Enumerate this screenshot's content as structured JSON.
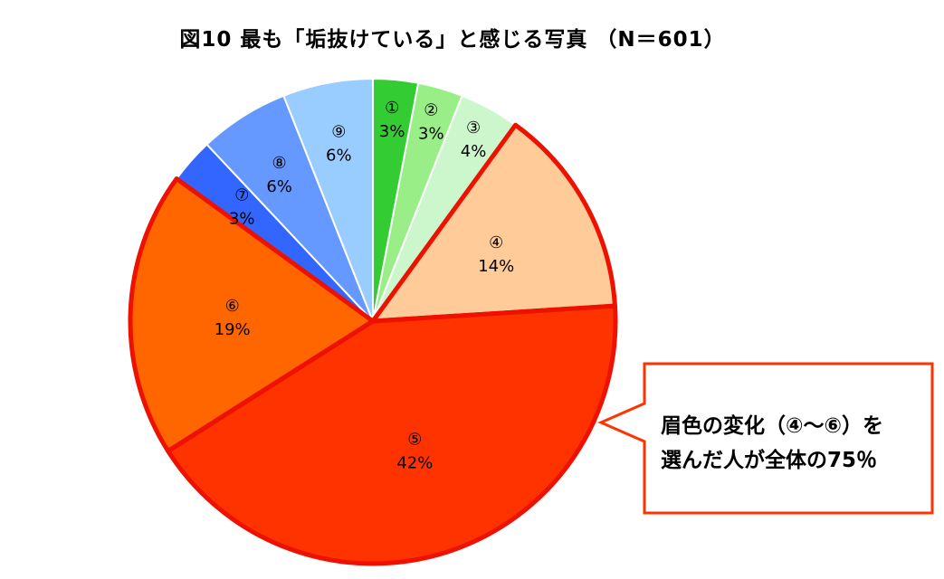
{
  "chart_data": {
    "type": "pie",
    "title": "図10 最も「垢抜けている」と感じる写真 （N＝601）",
    "slices": [
      {
        "id": "①",
        "value": 3,
        "label": "3%",
        "color": "#33cc33"
      },
      {
        "id": "②",
        "value": 3,
        "label": "3%",
        "color": "#99ee88"
      },
      {
        "id": "③",
        "value": 4,
        "label": "4%",
        "color": "#ccf7cc"
      },
      {
        "id": "④",
        "value": 14,
        "label": "14%",
        "color": "#ffcc99"
      },
      {
        "id": "⑤",
        "value": 42,
        "label": "42%",
        "color": "#ff3300"
      },
      {
        "id": "⑥",
        "value": 19,
        "label": "19%",
        "color": "#ff6600"
      },
      {
        "id": "⑦",
        "value": 3,
        "label": "3%",
        "color": "#3366ff"
      },
      {
        "id": "⑧",
        "value": 6,
        "label": "6%",
        "color": "#6699ff"
      },
      {
        "id": "⑨",
        "value": 6,
        "label": "6%",
        "color": "#99ccff"
      }
    ],
    "highlight": [
      "④",
      "⑤",
      "⑥"
    ],
    "highlight_color": "#ee1100",
    "annotation": {
      "lines": [
        "眉色の変化（④～⑥）を",
        "選んだ人が全体の75％"
      ],
      "border_color": "#ff3300"
    }
  }
}
